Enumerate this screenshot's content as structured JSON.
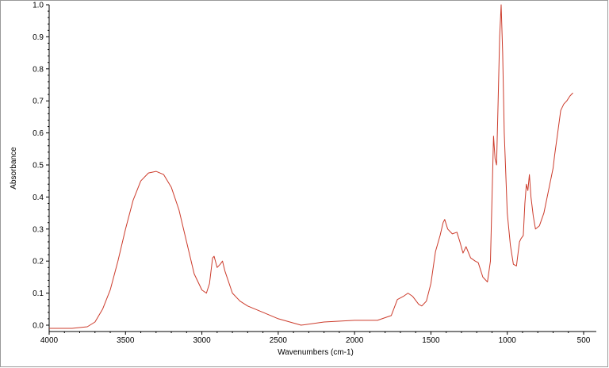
{
  "chart_data": {
    "type": "line",
    "title": "",
    "xlabel": "Wavenumbers (cm-1)",
    "ylabel": "Absorbance",
    "xlim": [
      4000,
      400
    ],
    "ylim": [
      -0.02,
      1.0
    ],
    "x_reversed": true,
    "x_ticks": [
      4000,
      3500,
      3000,
      2500,
      2000,
      1500,
      1000,
      500
    ],
    "x_tick_labels": [
      "4000",
      "3500",
      "3000",
      "2500",
      "2000",
      "1500",
      "1000",
      "500"
    ],
    "y_ticks": [
      0.0,
      0.1,
      0.2,
      0.3,
      0.4,
      0.5,
      0.6,
      0.7,
      0.8,
      0.9,
      1.0
    ],
    "y_tick_labels": [
      "0.0",
      "0.1",
      "0.2",
      "0.3",
      "0.4",
      "0.5",
      "0.6",
      "0.7",
      "0.8",
      "0.9",
      "1.0"
    ],
    "grid": false,
    "line_color": "#cc3b2b",
    "series": [
      {
        "points": [
          [
            4000,
            -0.01
          ],
          [
            3850,
            -0.01
          ],
          [
            3750,
            -0.005
          ],
          [
            3700,
            0.01
          ],
          [
            3650,
            0.05
          ],
          [
            3600,
            0.11
          ],
          [
            3550,
            0.2
          ],
          [
            3500,
            0.3
          ],
          [
            3450,
            0.39
          ],
          [
            3400,
            0.45
          ],
          [
            3350,
            0.475
          ],
          [
            3300,
            0.48
          ],
          [
            3250,
            0.47
          ],
          [
            3200,
            0.43
          ],
          [
            3150,
            0.36
          ],
          [
            3100,
            0.26
          ],
          [
            3050,
            0.16
          ],
          [
            3000,
            0.11
          ],
          [
            2970,
            0.1
          ],
          [
            2950,
            0.13
          ],
          [
            2930,
            0.21
          ],
          [
            2920,
            0.215
          ],
          [
            2900,
            0.18
          ],
          [
            2880,
            0.19
          ],
          [
            2865,
            0.2
          ],
          [
            2850,
            0.17
          ],
          [
            2800,
            0.1
          ],
          [
            2750,
            0.075
          ],
          [
            2700,
            0.06
          ],
          [
            2600,
            0.04
          ],
          [
            2500,
            0.02
          ],
          [
            2350,
            0.0
          ],
          [
            2200,
            0.01
          ],
          [
            2000,
            0.015
          ],
          [
            1850,
            0.015
          ],
          [
            1760,
            0.03
          ],
          [
            1720,
            0.08
          ],
          [
            1680,
            0.09
          ],
          [
            1650,
            0.1
          ],
          [
            1620,
            0.09
          ],
          [
            1580,
            0.065
          ],
          [
            1560,
            0.06
          ],
          [
            1530,
            0.075
          ],
          [
            1500,
            0.13
          ],
          [
            1470,
            0.23
          ],
          [
            1440,
            0.28
          ],
          [
            1420,
            0.32
          ],
          [
            1410,
            0.33
          ],
          [
            1390,
            0.3
          ],
          [
            1360,
            0.285
          ],
          [
            1330,
            0.29
          ],
          [
            1310,
            0.26
          ],
          [
            1290,
            0.225
          ],
          [
            1270,
            0.245
          ],
          [
            1240,
            0.21
          ],
          [
            1210,
            0.2
          ],
          [
            1190,
            0.195
          ],
          [
            1160,
            0.15
          ],
          [
            1130,
            0.135
          ],
          [
            1110,
            0.2
          ],
          [
            1100,
            0.4
          ],
          [
            1090,
            0.59
          ],
          [
            1080,
            0.52
          ],
          [
            1070,
            0.5
          ],
          [
            1060,
            0.7
          ],
          [
            1050,
            0.9
          ],
          [
            1040,
            1.0
          ],
          [
            1030,
            0.85
          ],
          [
            1020,
            0.6
          ],
          [
            1000,
            0.35
          ],
          [
            980,
            0.25
          ],
          [
            960,
            0.19
          ],
          [
            940,
            0.185
          ],
          [
            920,
            0.26
          ],
          [
            910,
            0.27
          ],
          [
            895,
            0.28
          ],
          [
            885,
            0.38
          ],
          [
            875,
            0.44
          ],
          [
            865,
            0.42
          ],
          [
            855,
            0.47
          ],
          [
            845,
            0.4
          ],
          [
            830,
            0.34
          ],
          [
            815,
            0.3
          ],
          [
            790,
            0.31
          ],
          [
            760,
            0.35
          ],
          [
            730,
            0.42
          ],
          [
            700,
            0.49
          ],
          [
            690,
            0.53
          ],
          [
            670,
            0.6
          ],
          [
            650,
            0.67
          ],
          [
            630,
            0.69
          ],
          [
            610,
            0.7
          ],
          [
            590,
            0.715
          ],
          [
            570,
            0.725
          ]
        ]
      }
    ]
  }
}
